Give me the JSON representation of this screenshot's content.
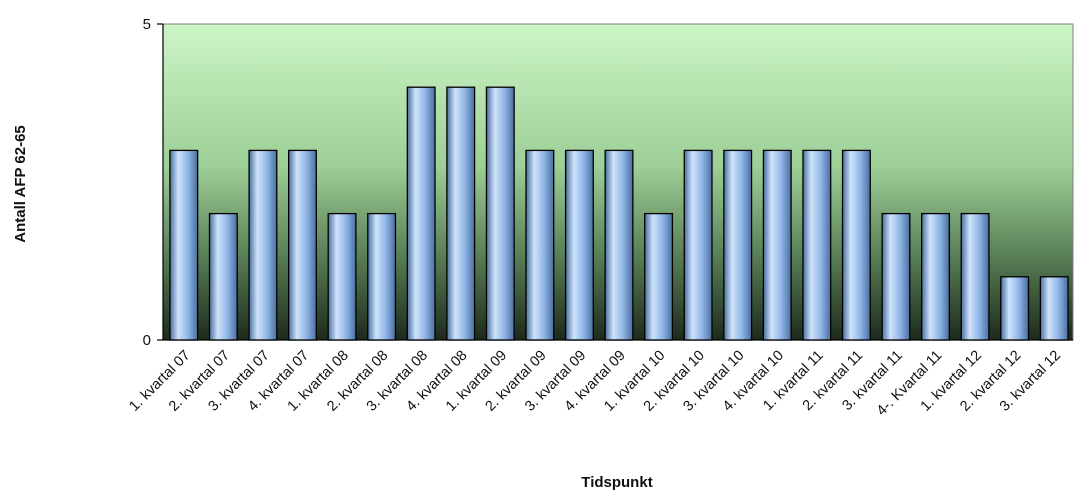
{
  "chart_data": {
    "type": "bar",
    "title": "",
    "xlabel": "Tidspunkt",
    "ylabel": "Antall AFP 62-65",
    "ylim": [
      0,
      5
    ],
    "yticks": [
      0,
      5
    ],
    "grid": false,
    "legend": "none",
    "colors": {
      "bar_light": "#cfe3fb",
      "bar_mid": "#8fb5e6",
      "bar_dark": "#4a6f9f",
      "plot_top": "#ccf5c6",
      "plot_bottom": "#1d2a1c"
    },
    "categories": [
      "1. kvartal 07",
      "2. kvartal 07",
      "3. kvartal 07",
      "4. kvartal 07",
      "1. kvartal 08",
      "2. kvartal 08",
      "3. kvartal 08",
      "4. kvartal 08",
      "1. kvartal 09",
      "2. kvartal 09",
      "3. kvartal 09",
      "4. kvartal 09",
      "1. kvartal 10",
      "2. kvartal 10",
      "3. kvartal 10",
      "4. kvartal 10",
      "1. kvartal 11",
      "2. kvartal 11",
      "3. kvartal 11",
      "4-. Kvartal 11",
      "1. kvartal 12",
      "2. kvartal 12",
      "3. kvartal 12"
    ],
    "values": [
      3,
      2,
      3,
      3,
      2,
      2,
      4,
      4,
      4,
      3,
      3,
      3,
      2,
      3,
      3,
      3,
      3,
      3,
      2,
      2,
      2,
      1,
      1
    ]
  }
}
